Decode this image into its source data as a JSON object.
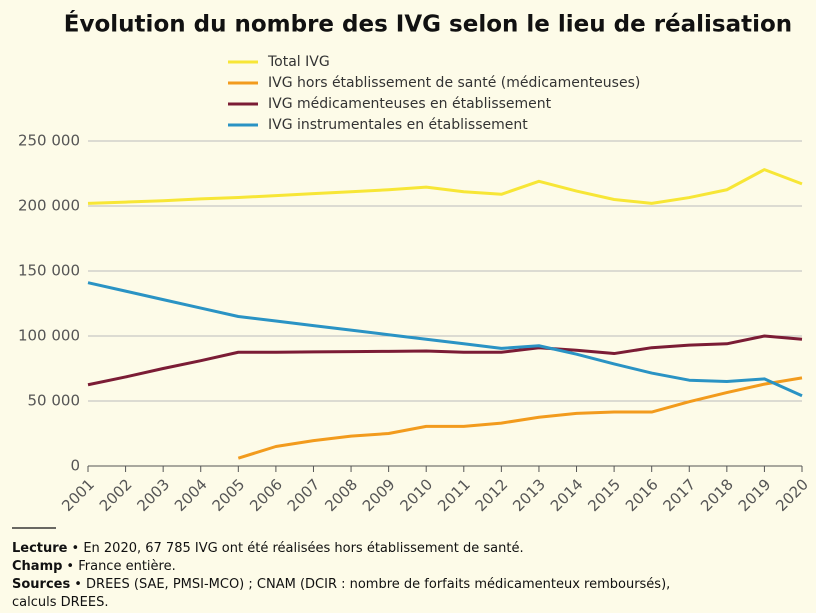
{
  "chart_data": {
    "type": "line",
    "title": "Évolution du nombre des IVG selon le lieu de réalisation",
    "categories": [
      "2001",
      "2002",
      "2003",
      "2004",
      "2005",
      "2006",
      "2007",
      "2008",
      "2009",
      "2010",
      "2011",
      "2012",
      "2013",
      "2014",
      "2015",
      "2016",
      "2017",
      "2018",
      "2019",
      "2020"
    ],
    "series": [
      {
        "name": "Total IVG",
        "color": "#f7e636",
        "values": [
          202000,
          203000,
          204000,
          205500,
          206500,
          208000,
          209500,
          211000,
          212500,
          214500,
          211000,
          209000,
          219000,
          211500,
          205000,
          202000,
          206500,
          212500,
          228000,
          217000
        ]
      },
      {
        "name": "IVG hors établissement de santé (médicamenteuses)",
        "color": "#f29b1d",
        "values": [
          null,
          null,
          null,
          null,
          6000,
          15000,
          19500,
          23000,
          25000,
          30500,
          30500,
          33000,
          37500,
          40500,
          41500,
          41500,
          49500,
          56500,
          63000,
          67785
        ]
      },
      {
        "name": "IVG médicamenteuses en établissement",
        "color": "#7b1c35",
        "values": [
          62500,
          68500,
          75000,
          81000,
          87500,
          87500,
          87800,
          88000,
          88200,
          88500,
          87500,
          87500,
          91000,
          89000,
          86500,
          91000,
          93000,
          94000,
          100000,
          97500
        ]
      },
      {
        "name": "IVG instrumentales en établissement",
        "color": "#2a93c4",
        "values": [
          141000,
          134500,
          128000,
          121500,
          115000,
          111500,
          108000,
          104500,
          101000,
          97500,
          94000,
          90500,
          92500,
          86000,
          78500,
          71500,
          66000,
          65000,
          67000,
          54000
        ]
      }
    ],
    "ylim": [
      0,
      250000
    ],
    "yticks": [
      0,
      {
        "value": 50000,
        "label": "50 000"
      },
      {
        "value": 100000,
        "label": "100 000"
      },
      {
        "value": 150000,
        "label": "150 000"
      },
      {
        "value": 200000,
        "label": "200 000"
      },
      {
        "value": 250000,
        "label": "250 000"
      }
    ],
    "grid": true
  },
  "notes": [
    {
      "label": "Lecture",
      "lines": [
        "• En 2020, 67 785 IVG ont été réalisées hors établissement de santé."
      ]
    },
    {
      "label": "Champ",
      "lines": [
        "• France entière."
      ]
    },
    {
      "label": "Sources",
      "lines": [
        "• DREES (SAE, PMSI-MCO) ; CNAM (DCIR : nombre de forfaits médicamenteux remboursés),",
        "calculs DREES."
      ]
    }
  ]
}
